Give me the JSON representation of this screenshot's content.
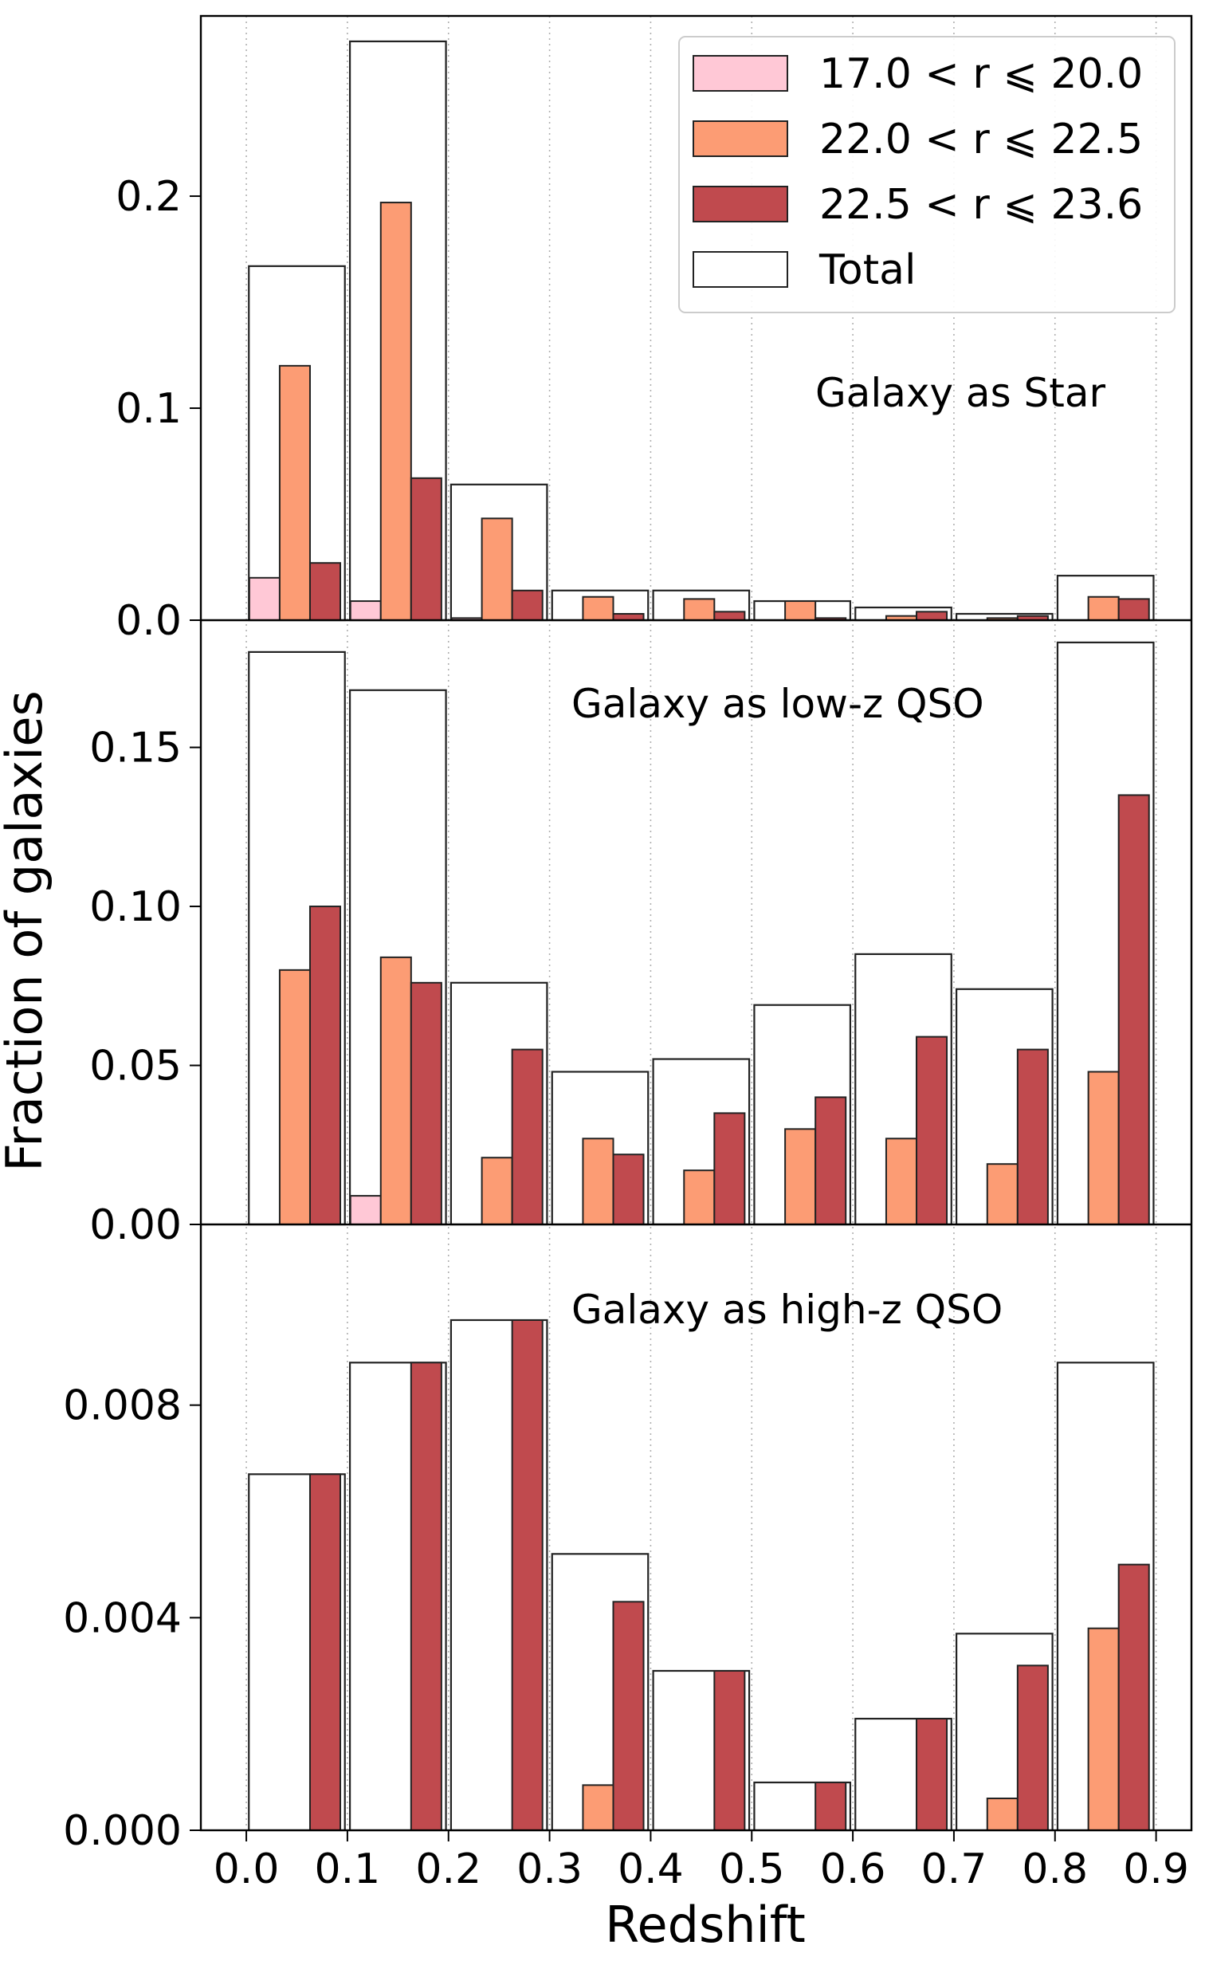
{
  "chart_data": {
    "type": "bar",
    "xlabel": "Redshift",
    "ylabel": "Fraction of galaxies",
    "bins": [
      0.0,
      0.1,
      0.2,
      0.3,
      0.4,
      0.5,
      0.6,
      0.7,
      0.8,
      0.9
    ],
    "x_ticks": [
      "0.0",
      "0.1",
      "0.2",
      "0.3",
      "0.4",
      "0.5",
      "0.6",
      "0.7",
      "0.8",
      "0.9"
    ],
    "x_range": [
      -0.045,
      0.935
    ],
    "grid": "vertical dotted at x ticks",
    "legend": {
      "position": "top-right",
      "entries": [
        {
          "key": "s1",
          "label": "17.0 < r ⩽ 20.0",
          "color": "#ffc8d6"
        },
        {
          "key": "s2",
          "label": "22.0 < r ⩽ 22.5",
          "color": "#fc9c74"
        },
        {
          "key": "s3",
          "label": "22.5 < r ⩽ 23.6",
          "color": "#c04a4e"
        },
        {
          "key": "total",
          "label": "Total",
          "color": "#ffffff"
        }
      ]
    },
    "panels": [
      {
        "name": "star",
        "label": "Galaxy as Star",
        "ylim": [
          0,
          0.285
        ],
        "y_ticks": [
          0.0,
          0.1,
          0.2
        ],
        "y_tick_labels": [
          "0.0",
          "0.1",
          "0.2"
        ],
        "series": {
          "s1": [
            0.02,
            0.009,
            0.001,
            0,
            0,
            0,
            0,
            0,
            0
          ],
          "s2": [
            0.12,
            0.197,
            0.048,
            0.011,
            0.01,
            0.009,
            0.002,
            0.001,
            0.011
          ],
          "s3": [
            0.027,
            0.067,
            0.014,
            0.003,
            0.004,
            0.001,
            0.004,
            0.002,
            0.01
          ],
          "total": [
            0.167,
            0.273,
            0.064,
            0.014,
            0.014,
            0.009,
            0.006,
            0.003,
            0.021
          ]
        }
      },
      {
        "name": "lowz",
        "label": "Galaxy as low-z QSO",
        "ylim": [
          0,
          0.19
        ],
        "y_ticks": [
          0.0,
          0.05,
          0.1,
          0.15
        ],
        "y_tick_labels": [
          "0.00",
          "0.05",
          "0.10",
          "0.15"
        ],
        "series": {
          "s1": [
            0,
            0.009,
            0,
            0,
            0,
            0,
            0,
            0,
            0
          ],
          "s2": [
            0.08,
            0.084,
            0.021,
            0.027,
            0.017,
            0.03,
            0.027,
            0.019,
            0.048
          ],
          "s3": [
            0.1,
            0.076,
            0.055,
            0.022,
            0.035,
            0.04,
            0.059,
            0.055,
            0.135
          ],
          "total": [
            0.18,
            0.168,
            0.076,
            0.048,
            0.052,
            0.069,
            0.085,
            0.074,
            0.183
          ]
        }
      },
      {
        "name": "highz",
        "label": "Galaxy as high-z QSO",
        "ylim": [
          0,
          0.0114
        ],
        "y_ticks": [
          0.0,
          0.004,
          0.008
        ],
        "y_tick_labels": [
          "0.000",
          "0.004",
          "0.008"
        ],
        "series": {
          "s1": [
            0,
            0,
            0,
            0,
            0,
            0,
            0,
            0,
            0
          ],
          "s2": [
            0,
            0,
            0,
            0.00085,
            0,
            0,
            0,
            0.0006,
            0.0038
          ],
          "s3": [
            0.0067,
            0.0088,
            0.0096,
            0.0043,
            0.003,
            0.0009,
            0.0021,
            0.0031,
            0.005
          ],
          "total": [
            0.0067,
            0.0088,
            0.0096,
            0.0052,
            0.003,
            0.0009,
            0.0021,
            0.0037,
            0.0088
          ]
        }
      }
    ]
  }
}
